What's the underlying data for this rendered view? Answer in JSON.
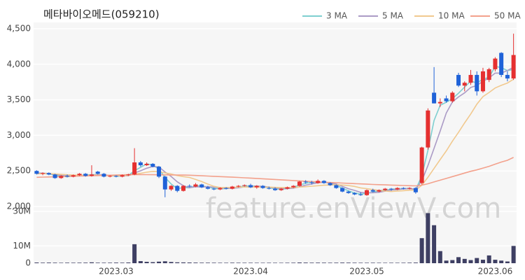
{
  "chart_data": {
    "type": "candlestick",
    "title": "메타바이오메드(059210)",
    "watermark": "feature.enViewV.com",
    "legend": "top-right",
    "grid": true,
    "up_color": "#e53030",
    "down_color": "#1f62d8",
    "categories": [
      null,
      null,
      null,
      null,
      null,
      null,
      null,
      null,
      null,
      null,
      null,
      null,
      null,
      "2023.03",
      null,
      null,
      null,
      null,
      null,
      null,
      null,
      null,
      null,
      null,
      null,
      null,
      null,
      null,
      null,
      null,
      null,
      null,
      null,
      null,
      null,
      "2023.04",
      null,
      null,
      null,
      null,
      null,
      null,
      null,
      null,
      null,
      null,
      null,
      null,
      null,
      null,
      null,
      null,
      null,
      null,
      "2023.05",
      null,
      null,
      null,
      null,
      null,
      null,
      null,
      null,
      null,
      null,
      null,
      null,
      null,
      null,
      null,
      null,
      null,
      null,
      null,
      null,
      "2023.06",
      null,
      null,
      null
    ],
    "open": [
      2500,
      2460,
      2470,
      2450,
      2400,
      2430,
      2420,
      2440,
      2460,
      2430,
      2490,
      2460,
      2420,
      2430,
      2420,
      2440,
      2450,
      2620,
      2580,
      2600,
      2560,
      2420,
      2240,
      2290,
      2220,
      2290,
      2280,
      2310,
      2270,
      2250,
      2240,
      2260,
      2250,
      2280,
      2290,
      2300,
      2270,
      2290,
      2260,
      2250,
      2230,
      2250,
      2270,
      2290,
      2350,
      2340,
      2330,
      2360,
      2330,
      2300,
      2260,
      2210,
      2190,
      2170,
      2160,
      2230,
      2210,
      2230,
      2250,
      2240,
      2260,
      2250,
      2260,
      2330,
      2830,
      3600,
      3450,
      3520,
      3480,
      3850,
      3700,
      3740,
      3850,
      3620,
      3780,
      3930,
      4160,
      3850,
      3800
    ],
    "high": [
      2510,
      2480,
      2480,
      2460,
      2440,
      2450,
      2450,
      2470,
      2470,
      2580,
      2500,
      2470,
      2440,
      2440,
      2450,
      2460,
      2820,
      2640,
      2620,
      2610,
      2570,
      2430,
      2300,
      2300,
      2300,
      2310,
      2330,
      2320,
      2290,
      2260,
      2270,
      2270,
      2290,
      2300,
      2310,
      2320,
      2300,
      2300,
      2280,
      2270,
      2260,
      2280,
      2300,
      2360,
      2370,
      2360,
      2380,
      2370,
      2340,
      2310,
      2270,
      2220,
      2200,
      2200,
      2240,
      2250,
      2240,
      2260,
      2260,
      2270,
      2270,
      2270,
      2270,
      2840,
      3380,
      3960,
      3520,
      3560,
      3620,
      3880,
      3760,
      3920,
      3900,
      3950,
      3950,
      4100,
      4170,
      3900,
      4430
    ],
    "low": [
      2450,
      2440,
      2440,
      2390,
      2390,
      2410,
      2410,
      2430,
      2420,
      2420,
      2450,
      2410,
      2410,
      2410,
      2410,
      2430,
      2440,
      2560,
      2570,
      2550,
      2400,
      2130,
      2220,
      2200,
      2210,
      2270,
      2270,
      2260,
      2240,
      2230,
      2230,
      2240,
      2240,
      2270,
      2280,
      2260,
      2250,
      2250,
      2240,
      2220,
      2220,
      2240,
      2260,
      2280,
      2320,
      2310,
      2320,
      2320,
      2290,
      2250,
      2200,
      2180,
      2160,
      2150,
      2150,
      2200,
      2200,
      2220,
      2220,
      2230,
      2240,
      2240,
      2180,
      2310,
      2800,
      3450,
      3400,
      3460,
      3460,
      3680,
      3620,
      3710,
      3560,
      3600,
      3750,
      3900,
      3820,
      3760,
      3780
    ],
    "close": [
      2460,
      2470,
      2450,
      2400,
      2430,
      2420,
      2440,
      2460,
      2430,
      2450,
      2460,
      2420,
      2430,
      2420,
      2440,
      2450,
      2620,
      2580,
      2600,
      2560,
      2420,
      2240,
      2290,
      2220,
      2290,
      2280,
      2310,
      2270,
      2250,
      2240,
      2260,
      2250,
      2280,
      2290,
      2300,
      2270,
      2290,
      2260,
      2250,
      2230,
      2250,
      2270,
      2290,
      2350,
      2340,
      2330,
      2360,
      2330,
      2300,
      2260,
      2210,
      2190,
      2170,
      2160,
      2230,
      2210,
      2230,
      2250,
      2240,
      2260,
      2250,
      2260,
      2200,
      2830,
      3350,
      3450,
      3470,
      3480,
      3600,
      3700,
      3740,
      3850,
      3620,
      3900,
      3930,
      4080,
      3850,
      3800,
      4130
    ],
    "ylim": [
      2000,
      4500
    ],
    "yticks": [
      {
        "value": 2000,
        "label": "2,000"
      },
      {
        "value": 2500,
        "label": "2,500"
      },
      {
        "value": 3000,
        "label": "3,000"
      },
      {
        "value": 3500,
        "label": "3,500"
      },
      {
        "value": 4000,
        "label": "4,000"
      },
      {
        "value": 4500,
        "label": "4,500"
      }
    ],
    "series": [
      {
        "name": "3 MA",
        "color": "#7ecfd0",
        "values": [
          2470,
          2465,
          2460,
          2440,
          2427,
          2417,
          2430,
          2440,
          2443,
          2447,
          2447,
          2443,
          2437,
          2423,
          2430,
          2437,
          2503,
          2550,
          2600,
          2580,
          2527,
          2407,
          2317,
          2250,
          2267,
          2263,
          2293,
          2287,
          2277,
          2253,
          2250,
          2250,
          2263,
          2273,
          2290,
          2287,
          2287,
          2273,
          2267,
          2247,
          2243,
          2250,
          2270,
          2303,
          2327,
          2340,
          2343,
          2340,
          2330,
          2297,
          2257,
          2220,
          2190,
          2173,
          2187,
          2200,
          2223,
          2230,
          2240,
          2250,
          2250,
          2257,
          2237,
          2430,
          2793,
          3210,
          3423,
          3467,
          3517,
          3593,
          3680,
          3763,
          3737,
          3790,
          3817,
          3970,
          3953,
          3910,
          3927
        ]
      },
      {
        "name": "5 MA",
        "color": "#ab9bc6",
        "values": [
          2470,
          2468,
          2465,
          2450,
          2442,
          2434,
          2428,
          2430,
          2436,
          2440,
          2448,
          2444,
          2438,
          2436,
          2434,
          2432,
          2472,
          2502,
          2538,
          2562,
          2556,
          2484,
          2422,
          2346,
          2292,
          2264,
          2278,
          2274,
          2280,
          2270,
          2266,
          2254,
          2256,
          2264,
          2276,
          2278,
          2286,
          2282,
          2274,
          2260,
          2256,
          2252,
          2258,
          2278,
          2300,
          2316,
          2334,
          2342,
          2332,
          2316,
          2282,
          2250,
          2226,
          2198,
          2192,
          2194,
          2200,
          2216,
          2232,
          2238,
          2246,
          2252,
          2242,
          2360,
          2578,
          2818,
          3060,
          3316,
          3470,
          3540,
          3598,
          3674,
          3702,
          3762,
          3808,
          3876,
          3876,
          3912,
          3958
        ]
      },
      {
        "name": "10 MA",
        "color": "#f1c98f",
        "values": [
          2460,
          2462,
          2462,
          2458,
          2452,
          2446,
          2442,
          2440,
          2438,
          2440,
          2440,
          2436,
          2434,
          2434,
          2435,
          2438,
          2455,
          2467,
          2483,
          2494,
          2491,
          2471,
          2458,
          2435,
          2420,
          2408,
          2380,
          2350,
          2315,
          2283,
          2267,
          2268,
          2267,
          2274,
          2274,
          2273,
          2274,
          2273,
          2273,
          2269,
          2265,
          2267,
          2268,
          2274,
          2279,
          2285,
          2292,
          2299,
          2303,
          2306,
          2302,
          2294,
          2282,
          2262,
          2251,
          2238,
          2225,
          2217,
          2211,
          2218,
          2222,
          2229,
          2232,
          2299,
          2411,
          2535,
          2659,
          2782,
          2918,
          3042,
          3176,
          3301,
          3438,
          3545,
          3603,
          3666,
          3704,
          3736,
          3789
        ]
      },
      {
        "name": "50 MA",
        "color": "#f3a18c",
        "values": [
          2410,
          2413,
          2415,
          2418,
          2420,
          2423,
          2425,
          2428,
          2430,
          2433,
          2435,
          2438,
          2440,
          2443,
          2445,
          2448,
          2450,
          2449,
          2448,
          2447,
          2446,
          2445,
          2444,
          2443,
          2442,
          2440,
          2436,
          2432,
          2428,
          2424,
          2420,
          2416,
          2412,
          2408,
          2404,
          2400,
          2395,
          2390,
          2385,
          2380,
          2375,
          2370,
          2365,
          2360,
          2355,
          2350,
          2346,
          2342,
          2338,
          2334,
          2330,
          2326,
          2322,
          2318,
          2314,
          2310,
          2307,
          2304,
          2301,
          2298,
          2295,
          2292,
          2290,
          2300,
          2320,
          2345,
          2370,
          2395,
          2420,
          2445,
          2470,
          2495,
          2515,
          2540,
          2565,
          2595,
          2625,
          2650,
          2690
        ]
      }
    ],
    "volume": {
      "color": "#3e3f63",
      "ylim": [
        0,
        30000000
      ],
      "yticks": [
        0,
        {
          "value": 10000000,
          "label": "10M"
        },
        {
          "value": 30000000,
          "label": "30M"
        }
      ],
      "values": [
        400000,
        300000,
        350000,
        300000,
        250000,
        300000,
        280000,
        300000,
        320000,
        500000,
        300000,
        280000,
        300000,
        350000,
        300000,
        400000,
        11000000,
        1200000,
        800000,
        600000,
        900000,
        1100000,
        700000,
        500000,
        450000,
        400000,
        350000,
        300000,
        300000,
        280000,
        260000,
        250000,
        300000,
        270000,
        250000,
        260000,
        240000,
        230000,
        250000,
        240000,
        230000,
        260000,
        280000,
        400000,
        350000,
        300000,
        320000,
        300000,
        280000,
        300000,
        350000,
        320000,
        280000,
        260000,
        250000,
        270000,
        240000,
        230000,
        250000,
        240000,
        260000,
        300000,
        350000,
        14500000,
        29000000,
        22000000,
        7000000,
        1500000,
        1800000,
        3500000,
        2500000,
        1800000,
        3000000,
        2000000,
        4500000,
        2000000,
        1500000,
        1000000,
        10000000
      ]
    }
  }
}
